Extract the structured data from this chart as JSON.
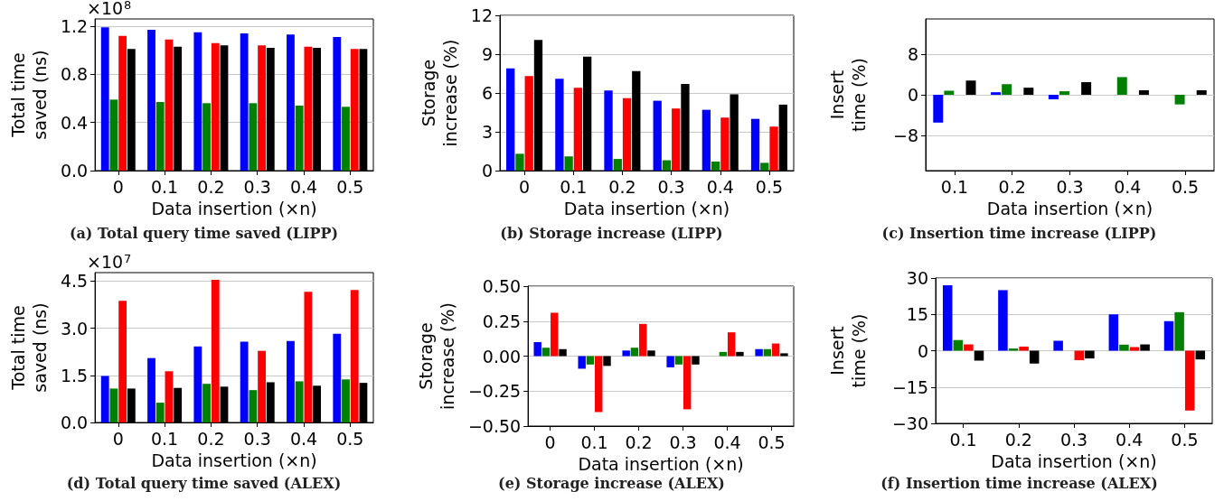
{
  "chart_data": [
    {
      "type": "bar",
      "title": "(a) Total query time saved (LIPP)",
      "xlabel": "Data insertion (×n)",
      "ylabel": "Total time saved (ns)",
      "annotations": [
        "×10$^{8}$"
      ],
      "categories": [
        "0",
        "0.1",
        "0.2",
        "0.3",
        "0.4",
        "0.5"
      ],
      "ylim": [
        0,
        1.26
      ],
      "yticks": [
        {
          "value": 0,
          "label": "0.0"
        },
        0.4,
        0.8,
        1.2
      ],
      "grid": "y",
      "series": [
        {
          "color": "#0000ff",
          "values": [
            1.19,
            1.17,
            1.15,
            1.14,
            1.13,
            1.11
          ]
        },
        {
          "color": "#008000",
          "values": [
            0.59,
            0.57,
            0.56,
            0.56,
            0.54,
            0.53
          ]
        },
        {
          "color": "#ff0000",
          "values": [
            1.12,
            1.09,
            1.06,
            1.04,
            1.03,
            1.01
          ]
        },
        {
          "color": "#000000",
          "values": [
            1.01,
            1.03,
            1.04,
            1.02,
            1.02,
            1.01
          ]
        }
      ]
    },
    {
      "type": "bar",
      "title": "(b) Storage increase (LIPP)",
      "xlabel": "Data insertion (×n)",
      "ylabel": "Storage increase (%)",
      "categories": [
        "0",
        "0.1",
        "0.2",
        "0.3",
        "0.4",
        "0.5"
      ],
      "ylim": [
        0,
        12
      ],
      "yticks": [
        0,
        3,
        6,
        9,
        12
      ],
      "grid": "y",
      "series": [
        {
          "color": "#0000ff",
          "values": [
            7.9,
            7.1,
            6.2,
            5.4,
            4.7,
            4.0
          ]
        },
        {
          "color": "#008000",
          "values": [
            1.3,
            1.1,
            0.9,
            0.8,
            0.7,
            0.6
          ]
        },
        {
          "color": "#ff0000",
          "values": [
            7.3,
            6.4,
            5.6,
            4.8,
            4.1,
            3.4
          ]
        },
        {
          "color": "#000000",
          "values": [
            10.1,
            8.8,
            7.7,
            6.7,
            5.9,
            5.1
          ]
        }
      ]
    },
    {
      "type": "bar",
      "title": "(c) Insertion time increase (LIPP)",
      "xlabel": "Data insertion (×n)",
      "ylabel": "Insert time (%)",
      "categories": [
        "0.1",
        "0.2",
        "0.3",
        "0.4",
        "0.5"
      ],
      "ylim": [
        -15,
        15
      ],
      "yticks": [
        {
          "value": -8,
          "label": "−8"
        },
        0,
        8
      ],
      "grid": "y",
      "series": [
        {
          "color": "#0000ff",
          "values": [
            -5.5,
            0.5,
            -0.9,
            0,
            0
          ]
        },
        {
          "color": "#008000",
          "values": [
            0.8,
            2.1,
            0.7,
            3.5,
            -1.9
          ]
        },
        {
          "color": "#ff0000",
          "values": [
            0,
            0,
            0,
            0,
            0
          ]
        },
        {
          "color": "#000000",
          "values": [
            2.8,
            1.4,
            2.5,
            0.9,
            0.9
          ]
        }
      ]
    },
    {
      "type": "bar",
      "title": "(d) Total query time saved (ALEX)",
      "xlabel": "Data insertion (×n)",
      "ylabel": "Total time saved (ns)",
      "annotations": [
        "×10$^{7}$"
      ],
      "categories": [
        "0",
        "0.1",
        "0.2",
        "0.3",
        "0.4",
        "0.5"
      ],
      "ylim": [
        0,
        4.77
      ],
      "yticks": [
        {
          "value": 0,
          "label": "0.0"
        },
        1.5,
        {
          "value": 3,
          "label": "3.0"
        },
        4.5
      ],
      "grid": "y",
      "series": [
        {
          "color": "#0000ff",
          "values": [
            1.48,
            2.05,
            2.42,
            2.57,
            2.59,
            2.82
          ]
        },
        {
          "color": "#008000",
          "values": [
            1.08,
            0.63,
            1.23,
            1.03,
            1.31,
            1.37
          ]
        },
        {
          "color": "#ff0000",
          "values": [
            3.87,
            1.63,
            4.54,
            2.28,
            4.16,
            4.22
          ]
        },
        {
          "color": "#000000",
          "values": [
            1.08,
            1.1,
            1.14,
            1.28,
            1.17,
            1.26
          ]
        }
      ]
    },
    {
      "type": "bar",
      "title": "(e) Storage increase (ALEX)",
      "xlabel": "Data insertion (×n)",
      "ylabel": "Storage increase (%)",
      "categories": [
        "0",
        "0.1",
        "0.2",
        "0.3",
        "0.4",
        "0.5"
      ],
      "ylim": [
        -0.5,
        0.5
      ],
      "yticks": [
        {
          "value": -0.5,
          "label": "−0.50"
        },
        {
          "value": -0.25,
          "label": "−0.25"
        },
        {
          "value": 0,
          "label": "0.00"
        },
        0.25,
        {
          "value": 0.5,
          "label": "0.50"
        }
      ],
      "grid": "y",
      "series": [
        {
          "color": "#0000ff",
          "values": [
            0.1,
            -0.09,
            0.04,
            -0.08,
            0,
            0.05
          ]
        },
        {
          "color": "#008000",
          "values": [
            0.06,
            -0.06,
            0.06,
            -0.06,
            0.03,
            0.05
          ]
        },
        {
          "color": "#ff0000",
          "values": [
            0.31,
            -0.4,
            0.23,
            -0.38,
            0.17,
            0.09
          ]
        },
        {
          "color": "#000000",
          "values": [
            0.05,
            -0.07,
            0.04,
            -0.06,
            0.03,
            0.02
          ]
        }
      ]
    },
    {
      "type": "bar",
      "title": "(f) Insertion time increase (ALEX)",
      "xlabel": "Data insertion (×n)",
      "ylabel": "Insert time (%)",
      "categories": [
        "0.1",
        "0.2",
        "0.3",
        "0.4",
        "0.5"
      ],
      "ylim": [
        -30,
        30
      ],
      "yticks": [
        {
          "value": -30,
          "label": "−30"
        },
        {
          "value": -15,
          "label": "−15"
        },
        0,
        15,
        30
      ],
      "grid": "y",
      "series": [
        {
          "color": "#0000ff",
          "values": [
            27,
            25,
            4.1,
            15,
            12.2
          ]
        },
        {
          "color": "#008000",
          "values": [
            4.4,
            0.9,
            0,
            2.5,
            15.9
          ]
        },
        {
          "color": "#ff0000",
          "values": [
            2.6,
            1.7,
            -3.9,
            1.5,
            -24.7
          ]
        },
        {
          "color": "#000000",
          "values": [
            -4.1,
            -5.3,
            -3.2,
            2.6,
            -3.6
          ]
        }
      ]
    }
  ]
}
